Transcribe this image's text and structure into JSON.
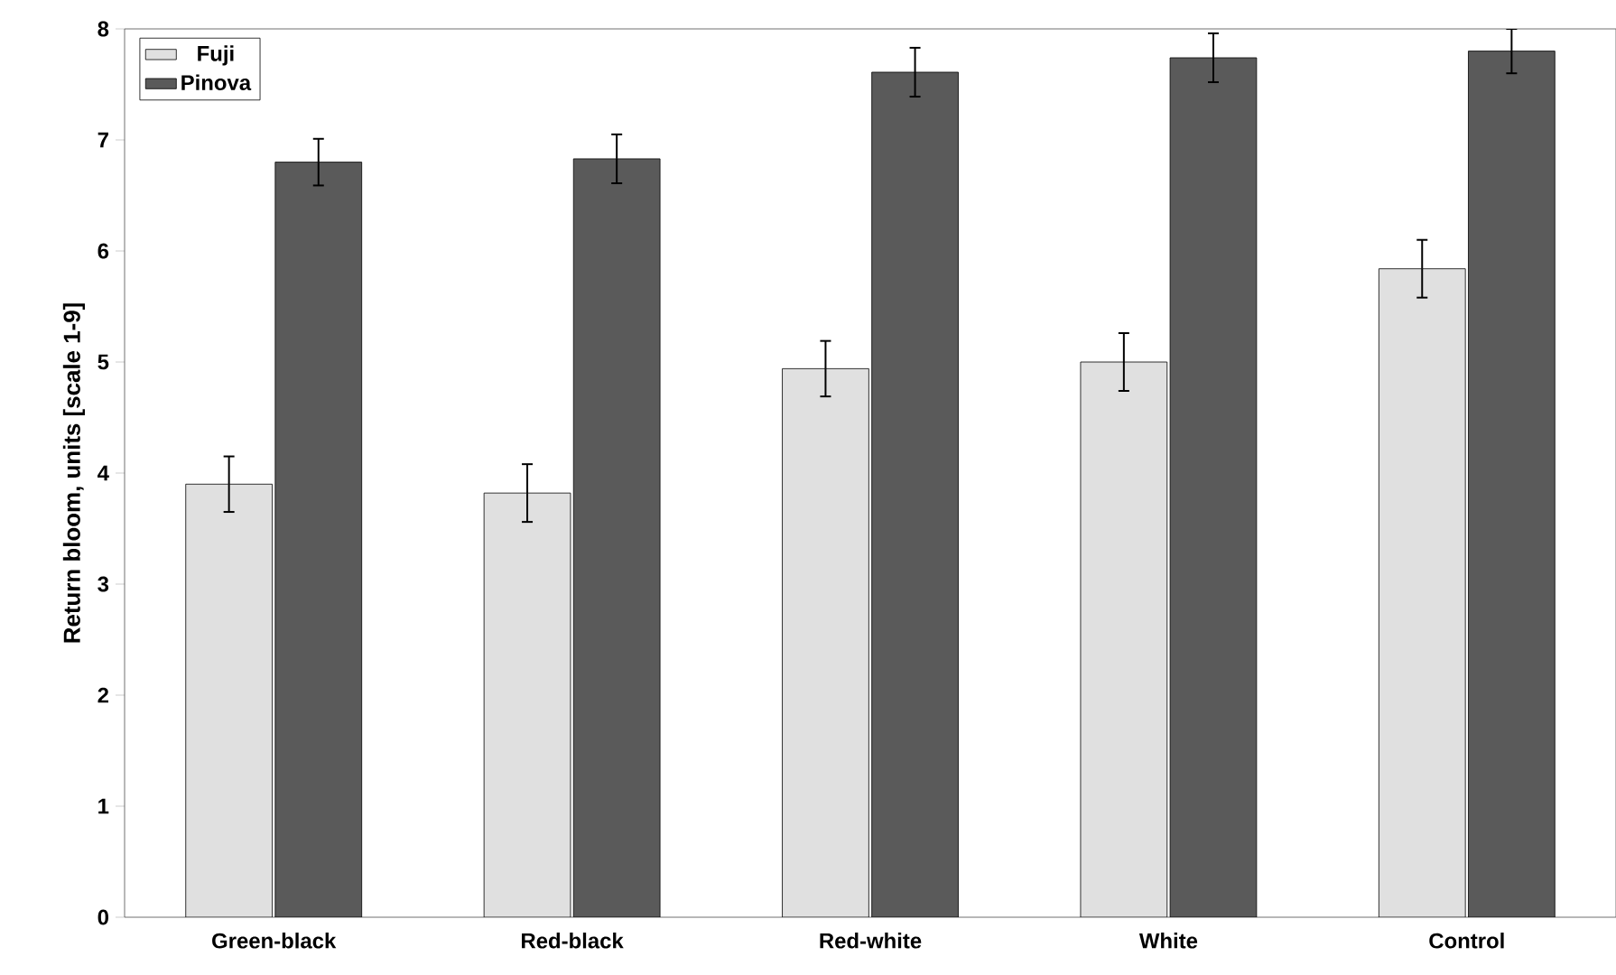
{
  "chart_data": {
    "type": "bar",
    "ylabel": "Return bloom, units [scale 1-9]",
    "categories": [
      "Green-black",
      "Red-black",
      "Red-white",
      "White",
      "Control"
    ],
    "series": [
      {
        "name": "Fuji",
        "color": "#e0e0e0",
        "values": [
          3.9,
          3.82,
          4.94,
          5.0,
          5.84
        ],
        "errors": [
          0.25,
          0.26,
          0.25,
          0.26,
          0.26
        ]
      },
      {
        "name": "Pinova",
        "color": "#5a5a5a",
        "values": [
          6.8,
          6.83,
          7.61,
          7.74,
          7.8
        ],
        "errors": [
          0.21,
          0.22,
          0.22,
          0.22,
          0.2
        ]
      }
    ],
    "ylim": [
      0,
      8
    ],
    "yticks": [
      0,
      1,
      2,
      3,
      4,
      5,
      6,
      7,
      8
    ],
    "grid": false,
    "legend": "top left"
  }
}
